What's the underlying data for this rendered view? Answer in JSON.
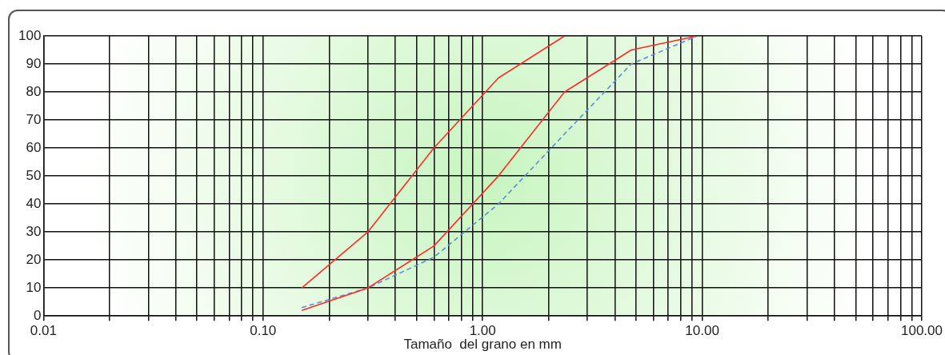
{
  "chart_data": {
    "type": "line",
    "xlabel": "Tamaño  del grano en mm",
    "x": [
      0.15,
      0.3,
      0.6,
      1.18,
      2.36,
      4.75,
      9.5
    ],
    "series": [
      {
        "color": "#ff2a2a",
        "values": [
          10,
          30,
          60,
          85,
          100,
          100,
          100
        ]
      },
      {
        "color": "#ff2a2a",
        "values": [
          2,
          10,
          25,
          50,
          80,
          95,
          100
        ]
      },
      {
        "color": "#5b8fd0",
        "line_style": "dashed",
        "values": [
          3,
          10,
          21,
          40,
          65,
          90,
          100
        ]
      }
    ],
    "log": "x",
    "xlim": [
      0.01,
      100
    ],
    "xticks": [
      {
        "value": 0.01,
        "label": "0.01"
      },
      {
        "value": 0.02,
        "label": null
      },
      {
        "value": 0.03,
        "label": null
      },
      {
        "value": 0.04,
        "label": null
      },
      {
        "value": 0.05,
        "label": null
      },
      {
        "value": 0.06,
        "label": null
      },
      {
        "value": 0.07,
        "label": null
      },
      {
        "value": 0.08,
        "label": null
      },
      {
        "value": 0.09,
        "label": null
      },
      {
        "value": 0.1,
        "label": "0.10"
      },
      {
        "value": 0.2,
        "label": null
      },
      {
        "value": 0.3,
        "label": null
      },
      {
        "value": 0.4,
        "label": null
      },
      {
        "value": 0.5,
        "label": null
      },
      {
        "value": 0.6,
        "label": null
      },
      {
        "value": 0.7,
        "label": null
      },
      {
        "value": 0.8,
        "label": null
      },
      {
        "value": 0.9,
        "label": null
      },
      {
        "value": 1,
        "label": "1.00"
      },
      {
        "value": 2,
        "label": null
      },
      {
        "value": 3,
        "label": null
      },
      {
        "value": 4,
        "label": null
      },
      {
        "value": 5,
        "label": null
      },
      {
        "value": 6,
        "label": null
      },
      {
        "value": 7,
        "label": null
      },
      {
        "value": 8,
        "label": null
      },
      {
        "value": 9,
        "label": null
      },
      {
        "value": 10,
        "label": "10.00"
      },
      {
        "value": 20,
        "label": null
      },
      {
        "value": 30,
        "label": null
      },
      {
        "value": 40,
        "label": null
      },
      {
        "value": 50,
        "label": null
      },
      {
        "value": 60,
        "label": null
      },
      {
        "value": 70,
        "label": null
      },
      {
        "value": 80,
        "label": null
      },
      {
        "value": 90,
        "label": null
      },
      {
        "value": 100,
        "label": "100.00"
      }
    ],
    "ylim": [
      0,
      100
    ],
    "yticks": [
      0,
      10,
      20,
      30,
      40,
      50,
      60,
      70,
      80,
      90,
      100
    ],
    "grid": true,
    "marker": "none"
  }
}
